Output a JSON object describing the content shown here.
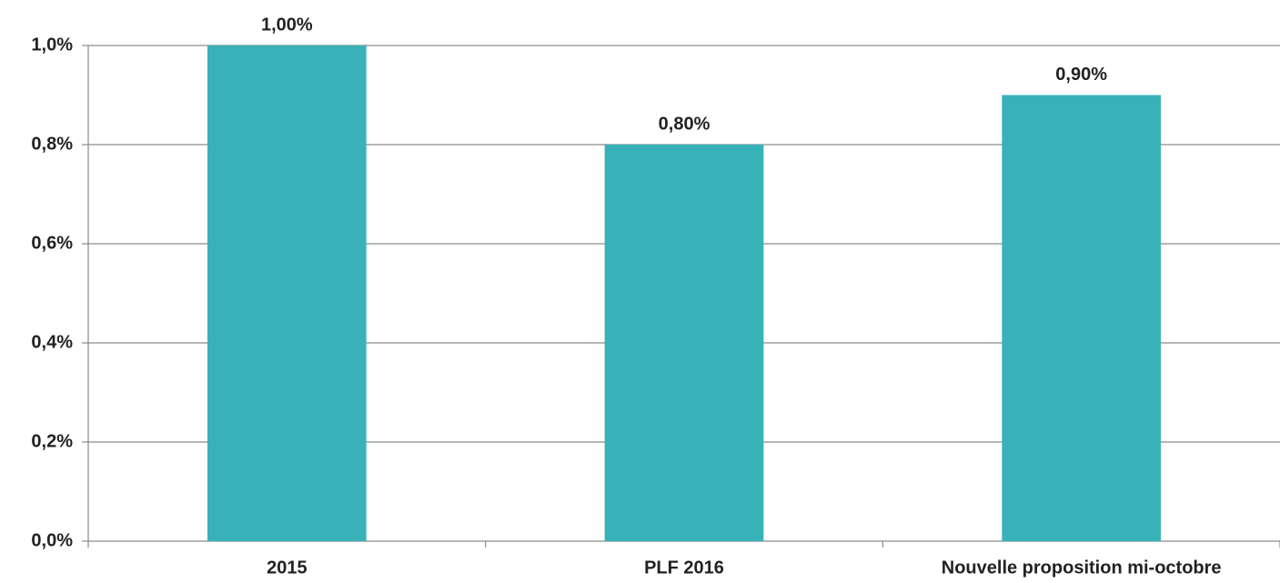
{
  "chart_data": {
    "type": "bar",
    "categories": [
      "2015",
      "PLF 2016",
      "Nouvelle proposition mi-octobre"
    ],
    "values": [
      1.0,
      0.8,
      0.9
    ],
    "value_labels": [
      "1,00%",
      "0,80%",
      "0,90%"
    ],
    "color": "#38b2b8",
    "ylim": [
      0,
      1.0
    ],
    "yticks": [
      {
        "value": 0,
        "label": "0,0%"
      },
      {
        "value": 0.2,
        "label": "0,2%"
      },
      {
        "value": 0.4,
        "label": "0,4%"
      },
      {
        "value": 0.6,
        "label": "0,6%"
      },
      {
        "value": 0.8,
        "label": "0,8%"
      },
      {
        "value": 1.0,
        "label": "1,0%"
      }
    ],
    "grid": true
  }
}
